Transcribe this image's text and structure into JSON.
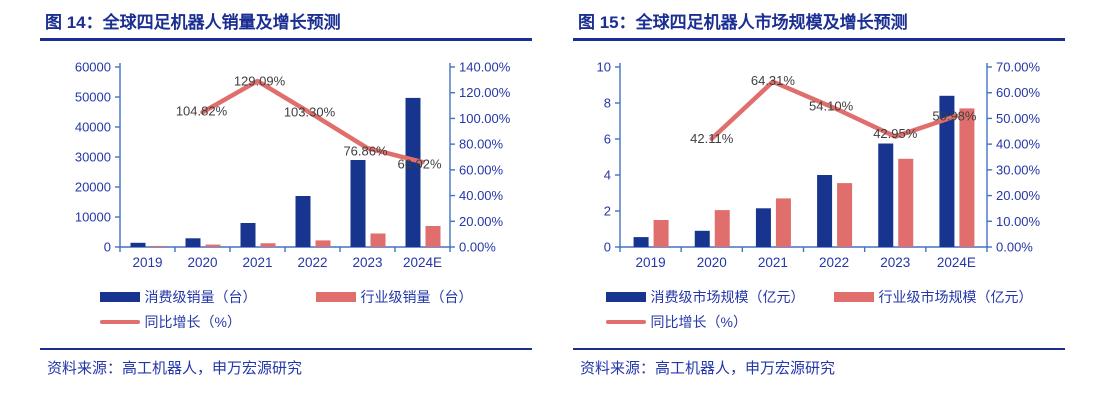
{
  "colors": {
    "navy_bar": "#17348E",
    "salmon": "#E06E6C",
    "axis_line": "#4472C4",
    "tick_text": "#2437A8",
    "title_navy": "#1B2F92",
    "data_label": "#3F3F3F",
    "legend_text": "#2437A8",
    "source_text": "#2437A8"
  },
  "chart_data": [
    {
      "type": "bar+line",
      "title": "图 14：全球四足机器人销量及增长预测",
      "source": "资料来源：高工机器人，申万宏源研究",
      "categories": [
        "2019",
        "2020",
        "2021",
        "2022",
        "2023",
        "2024E"
      ],
      "series": [
        {
          "name": "消费级销量（台）",
          "type": "bar",
          "axis": "left",
          "color": "#17348E",
          "values": [
            1400,
            2900,
            8000,
            17000,
            29000,
            49700
          ]
        },
        {
          "name": "行业级销量（台）",
          "type": "bar",
          "axis": "left",
          "color": "#E06E6C",
          "values": [
            350,
            800,
            1250,
            2200,
            4500,
            7000
          ]
        },
        {
          "name": "同比增长（%）",
          "type": "line",
          "axis": "right",
          "color": "#E06E6C",
          "values": [
            null,
            104.82,
            129.09,
            103.3,
            76.86,
            66.02
          ],
          "labels": [
            null,
            "104.82%",
            "129.09%",
            "103.30%",
            "76.86%",
            "66.02%"
          ]
        }
      ],
      "left_axis": {
        "min": 0,
        "max": 60000,
        "ticks": [
          "0",
          "10000",
          "20000",
          "30000",
          "40000",
          "50000",
          "60000"
        ]
      },
      "right_axis": {
        "min": 0,
        "max": 140,
        "ticks": [
          "0.00%",
          "20.00%",
          "40.00%",
          "60.00%",
          "80.00%",
          "100.00%",
          "120.00%",
          "140.00%"
        ]
      },
      "grid": "off",
      "legend_position": "bottom"
    },
    {
      "type": "bar+line",
      "title": "图 15：全球四足机器人市场规模及增长预测",
      "source": "资料来源：高工机器人，申万宏源研究",
      "categories": [
        "2019",
        "2020",
        "2021",
        "2022",
        "2023",
        "2024E"
      ],
      "series": [
        {
          "name": "消费级市场规模（亿元）",
          "type": "bar",
          "axis": "left",
          "color": "#17348E",
          "values": [
            0.55,
            0.9,
            2.15,
            4.0,
            5.75,
            8.4
          ]
        },
        {
          "name": "行业级市场规模（亿元）",
          "type": "bar",
          "axis": "left",
          "color": "#E06E6C",
          "values": [
            1.5,
            2.05,
            2.7,
            3.55,
            4.9,
            7.7
          ]
        },
        {
          "name": "同比增长（%）",
          "type": "line",
          "axis": "right",
          "color": "#E06E6C",
          "values": [
            null,
            42.11,
            64.31,
            54.1,
            42.95,
            50.98
          ],
          "labels": [
            null,
            "42.11%",
            "64.31%",
            "54.10%",
            "42.95%",
            "50.98%"
          ]
        }
      ],
      "left_axis": {
        "min": 0,
        "max": 10,
        "ticks": [
          "0",
          "2",
          "4",
          "6",
          "8",
          "10"
        ]
      },
      "right_axis": {
        "min": 0,
        "max": 70,
        "ticks": [
          "0.00%",
          "10.00%",
          "20.00%",
          "30.00%",
          "40.00%",
          "50.00%",
          "60.00%",
          "70.00%"
        ]
      },
      "grid": "off",
      "legend_position": "bottom"
    }
  ]
}
